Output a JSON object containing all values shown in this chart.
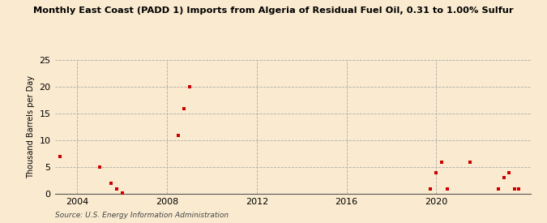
{
  "title": "East Coast (PADD 1) Imports from Algeria of Residual Fuel Oil, 0.31 to 1.00% Sulfur",
  "title_prefix": "Monthly ",
  "ylabel": "Thousand Barrels per Day",
  "source": "Source: U.S. Energy Information Administration",
  "background_color": "#faebd0",
  "plot_bg_color": "#faebd0",
  "dot_color": "#cc0000",
  "grid_color": "#aaaaaa",
  "ylim": [
    0,
    25
  ],
  "yticks": [
    0,
    5,
    10,
    15,
    20,
    25
  ],
  "xlim": [
    2003.0,
    2024.2
  ],
  "xticks": [
    2004,
    2008,
    2012,
    2016,
    2020
  ],
  "data_points": [
    [
      2003.25,
      7.0
    ],
    [
      2005.0,
      5.0
    ],
    [
      2005.5,
      2.0
    ],
    [
      2005.75,
      1.0
    ],
    [
      2006.0,
      0.2
    ],
    [
      2008.5,
      11.0
    ],
    [
      2008.75,
      16.0
    ],
    [
      2009.0,
      20.0
    ],
    [
      2019.75,
      1.0
    ],
    [
      2020.0,
      4.0
    ],
    [
      2020.25,
      6.0
    ],
    [
      2020.5,
      1.0
    ],
    [
      2021.5,
      6.0
    ],
    [
      2022.75,
      1.0
    ],
    [
      2023.0,
      3.0
    ],
    [
      2023.25,
      4.0
    ],
    [
      2023.5,
      1.0
    ],
    [
      2023.65,
      1.0
    ]
  ]
}
